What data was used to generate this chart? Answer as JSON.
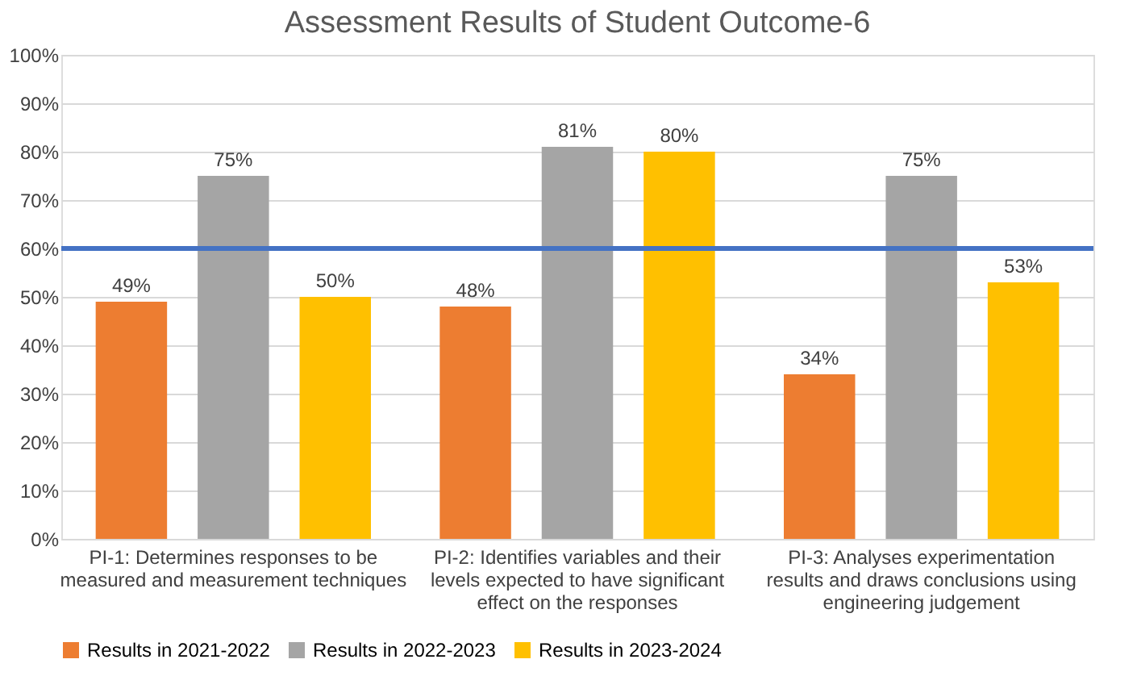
{
  "chart_data": {
    "type": "bar",
    "title": "Assessment Results of Student Outcome-6",
    "categories": [
      "PI-1: Determines responses to be measured and measurement techniques",
      "PI-2: Identifies variables and their levels expected to have significant effect on the responses",
      "PI-3: Analyses experimentation results and draws conclusions using engineering judgement"
    ],
    "series": [
      {
        "name": "Results in 2021-2022",
        "color": "#ed7d31",
        "values": [
          49,
          48,
          34
        ],
        "value_labels": [
          "49%",
          "48%",
          "34%"
        ]
      },
      {
        "name": "Results in 2022-2023",
        "color": "#a5a5a5",
        "values": [
          75,
          81,
          75
        ],
        "value_labels": [
          "75%",
          "81%",
          "75%"
        ]
      },
      {
        "name": "Results in 2023-2024",
        "color": "#ffc000",
        "values": [
          50,
          80,
          53
        ],
        "value_labels": [
          "50%",
          "80%",
          "53%"
        ]
      }
    ],
    "ylim": [
      0,
      100
    ],
    "yticks": [
      {
        "value": 0,
        "label": "0%"
      },
      {
        "value": 10,
        "label": "10%"
      },
      {
        "value": 20,
        "label": "20%"
      },
      {
        "value": 30,
        "label": "30%"
      },
      {
        "value": 40,
        "label": "40%"
      },
      {
        "value": 50,
        "label": "50%"
      },
      {
        "value": 60,
        "label": "60%"
      },
      {
        "value": 70,
        "label": "70%"
      },
      {
        "value": 80,
        "label": "80%"
      },
      {
        "value": 90,
        "label": "90%"
      },
      {
        "value": 100,
        "label": "100%"
      }
    ],
    "ref_lines": [
      {
        "axis": "y",
        "value": 60,
        "color": "#4472c4"
      }
    ],
    "grid": "y",
    "legend": "bottom"
  }
}
